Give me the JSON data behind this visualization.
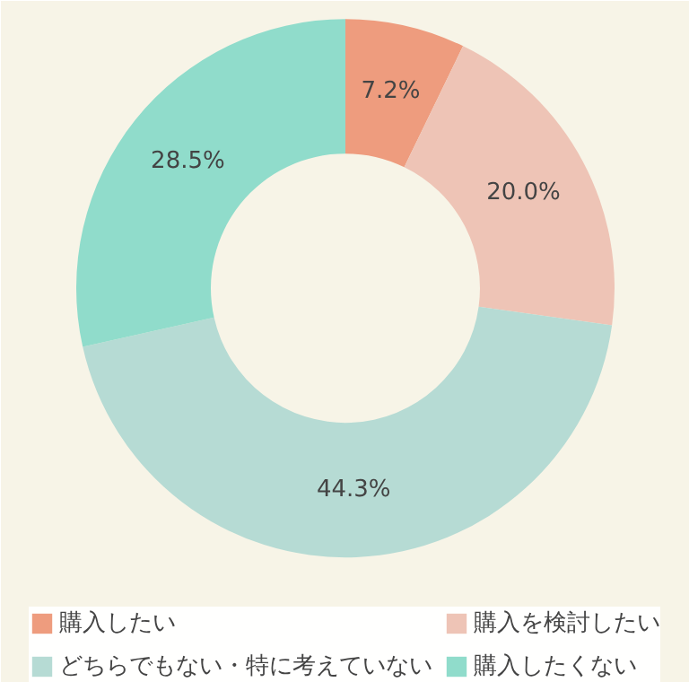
{
  "chart_data": {
    "type": "donut",
    "categories": [
      "購入したい",
      "購入を検討したい",
      "どちらでもない・特に考えていない",
      "購入したくない"
    ],
    "values": [
      7.2,
      20.0,
      44.3,
      28.5
    ],
    "colors": [
      "#ee9c7e",
      "#eec4b6",
      "#b6dbd4",
      "#90dccb"
    ],
    "value_labels": [
      "7.2%",
      "20.0%",
      "44.3%",
      "28.5%"
    ],
    "legend": "bottom"
  }
}
